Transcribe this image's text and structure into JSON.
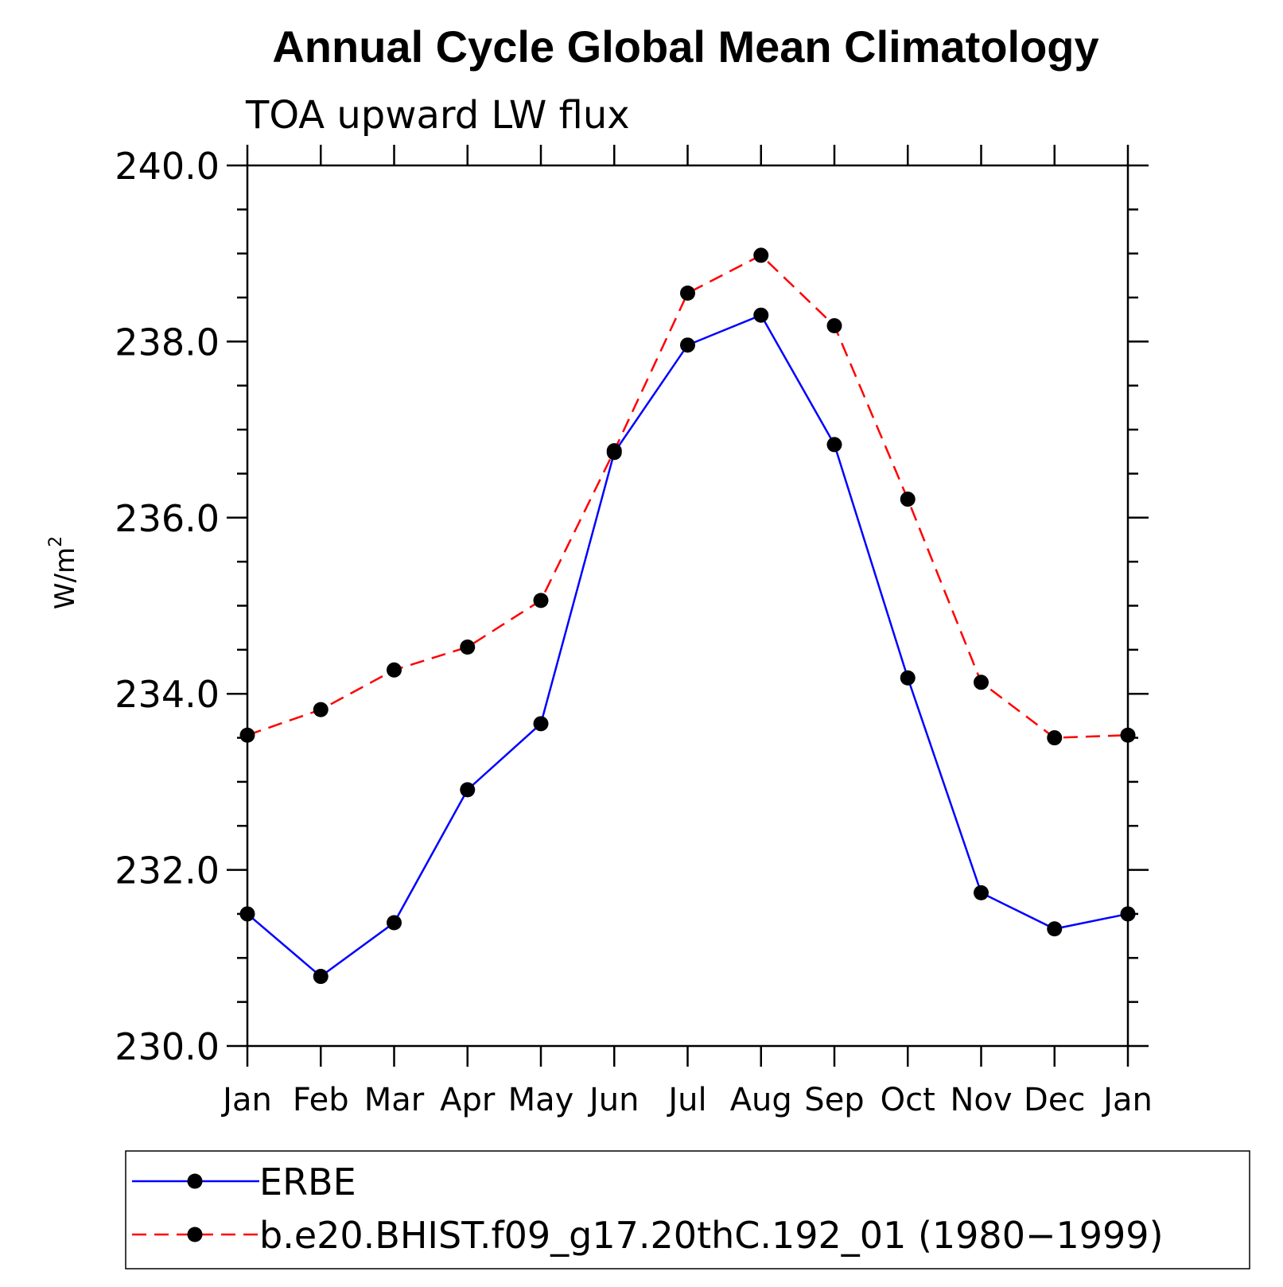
{
  "chart_data": {
    "type": "line",
    "title": "Annual Cycle Global Mean Climatology",
    "subtitle": "TOA upward LW flux",
    "ylabel_base": "W/m",
    "ylabel_sup": "2",
    "xlabel": "",
    "categories": [
      "Jan",
      "Feb",
      "Mar",
      "Apr",
      "May",
      "Jun",
      "Jul",
      "Aug",
      "Sep",
      "Oct",
      "Nov",
      "Dec",
      "Jan"
    ],
    "ylim": [
      230.0,
      240.0
    ],
    "yticks": [
      "230.0",
      "232.0",
      "234.0",
      "236.0",
      "238.0",
      "240.0"
    ],
    "grid": false,
    "legend_position": "bottom",
    "series": [
      {
        "name": "ERBE",
        "color": "#0000ff",
        "dash": "solid",
        "marker": "filled-circle",
        "values": [
          231.5,
          230.79,
          231.4,
          232.91,
          233.66,
          236.74,
          237.96,
          238.3,
          236.83,
          234.18,
          231.74,
          231.33,
          231.5
        ]
      },
      {
        "name": "b.e20.BHIST.f09_g17.20thC.192_01 (1980−1999)",
        "color": "#ff0000",
        "dash": "dashed",
        "marker": "filled-circle",
        "values": [
          233.53,
          233.82,
          234.27,
          234.53,
          235.06,
          236.76,
          238.55,
          238.98,
          238.18,
          236.21,
          234.13,
          233.5,
          233.53
        ]
      }
    ]
  }
}
